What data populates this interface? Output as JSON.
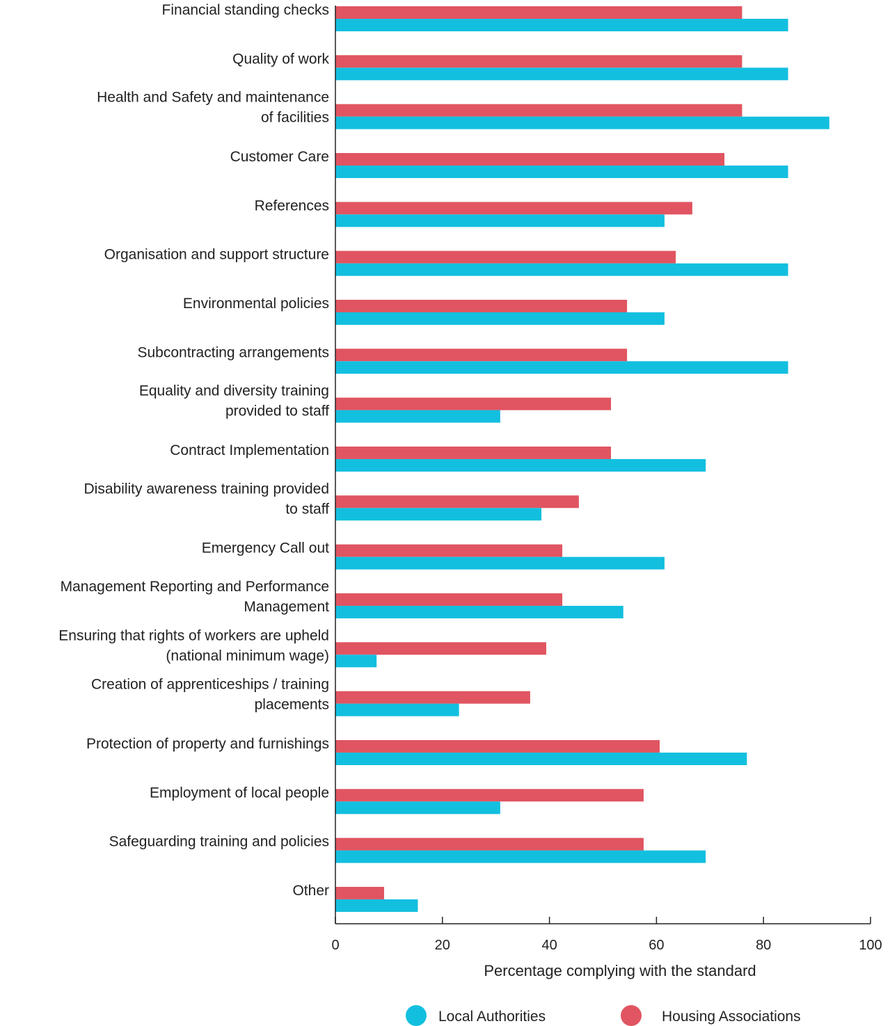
{
  "chart_data": {
    "type": "bar",
    "orientation": "horizontal",
    "categories": [
      [
        "Financial standing checks"
      ],
      [
        "Quality of work"
      ],
      [
        "Health and Safety and maintenance",
        "of facilities"
      ],
      [
        "Customer Care"
      ],
      [
        "References"
      ],
      [
        "Organisation and support structure"
      ],
      [
        "Environmental policies"
      ],
      [
        "Subcontracting arrangements"
      ],
      [
        "Equality and diversity training",
        "provided to staff"
      ],
      [
        "Contract Implementation"
      ],
      [
        "Disability awareness training provided",
        "to staff"
      ],
      [
        "Emergency Call out"
      ],
      [
        "Management Reporting and Performance",
        "Management"
      ],
      [
        "Ensuring that rights of workers are upheld",
        "(national minimum wage)"
      ],
      [
        "Creation of apprenticeships / training",
        "placements"
      ],
      [
        "Protection of property and furnishings"
      ],
      [
        "Employment of local people"
      ],
      [
        "Safeguarding training and policies"
      ],
      [
        "Other"
      ]
    ],
    "series": [
      {
        "name": "Housing Associations",
        "color": "#e05561",
        "values": [
          76,
          76,
          76,
          72.7,
          66.7,
          63.6,
          54.5,
          54.5,
          51.5,
          51.5,
          45.5,
          42.4,
          42.4,
          39.4,
          36.4,
          60.6,
          57.6,
          57.6,
          9.1
        ]
      },
      {
        "name": "Local Authorities",
        "color": "#13bfdf",
        "values": [
          84.6,
          84.6,
          92.3,
          84.6,
          61.5,
          84.6,
          61.5,
          84.6,
          30.8,
          69.2,
          38.5,
          61.5,
          53.8,
          7.7,
          23.1,
          76.9,
          30.8,
          69.2,
          15.4
        ]
      }
    ],
    "xlabel": "Percentage complying with the standard",
    "ylabel": "",
    "xlim": [
      0,
      100
    ],
    "xticks": [
      "0",
      "20",
      "40",
      "60",
      "80",
      "100"
    ],
    "grid": false,
    "legend": {
      "placement": "bottom",
      "items": [
        {
          "label": "Local Authorities",
          "color": "#13bfdf"
        },
        {
          "label": "Housing Associations",
          "color": "#e05561"
        }
      ]
    }
  }
}
